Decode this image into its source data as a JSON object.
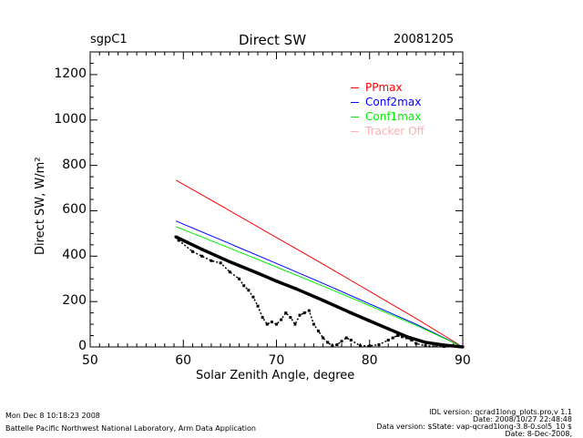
{
  "header": {
    "site": "sgpC1",
    "title": "Direct SW",
    "date": "20081205"
  },
  "footer": {
    "timestamp": "Mon Dec  8 10:18:23 2008",
    "organization": "Battelle Pacific Northwest National Laboratory, Arm Data Application",
    "idl_version": "IDL version: qcrad1long_plots.pro,v 1.1",
    "idl_date": "Date: 2008/10/27 22:48:48",
    "data_version": "Data version: $State: vap-qcrad1long-3.8-0.sol5_10 $",
    "data_date": "Date: 8-Dec-2008,"
  },
  "chart_data": {
    "type": "line",
    "title": "Direct SW",
    "xlabel": "Solar Zenith Angle, degree",
    "ylabel": "Direct SW, W/m²",
    "xlim": [
      50,
      90
    ],
    "ylim": [
      0,
      1300
    ],
    "xticks": [
      50,
      60,
      70,
      80,
      90
    ],
    "yticks": [
      0,
      200,
      400,
      600,
      800,
      1000,
      1200
    ],
    "grid": false,
    "legend_position": "top-right",
    "legend": [
      {
        "name": "PPmax",
        "color": "#ff0000"
      },
      {
        "name": "Conf2max",
        "color": "#0000ff"
      },
      {
        "name": "Conf1max",
        "color": "#00ee00"
      },
      {
        "name": "Tracker Off",
        "color": "#ffb0b0"
      }
    ],
    "series": [
      {
        "name": "PPmax",
        "color": "#ff0000",
        "x": [
          59.2,
          65,
          70,
          75,
          80,
          85,
          90
        ],
        "y": [
          735,
          600,
          482,
          365,
          245,
          125,
          0
        ]
      },
      {
        "name": "Conf2max",
        "color": "#0000ff",
        "x": [
          59.2,
          65,
          70,
          75,
          80,
          85,
          90
        ],
        "y": [
          555,
          455,
          368,
          280,
          190,
          100,
          0
        ]
      },
      {
        "name": "Conf1max",
        "color": "#00ee00",
        "x": [
          59.2,
          65,
          70,
          75,
          80,
          85,
          90
        ],
        "y": [
          530,
          435,
          352,
          268,
          182,
          95,
          0
        ]
      },
      {
        "name": "Measured (upper)",
        "color": "#000000",
        "x": [
          59.2,
          62,
          65,
          68,
          70,
          72,
          75,
          78,
          80,
          82,
          84,
          86,
          88,
          90
        ],
        "y": [
          485,
          430,
          375,
          325,
          290,
          258,
          205,
          150,
          115,
          80,
          45,
          20,
          8,
          0
        ]
      },
      {
        "name": "Measured (lower)",
        "color": "#000000",
        "x": [
          59.5,
          61,
          62,
          63,
          64,
          65,
          66,
          66.5,
          67,
          67.5,
          68,
          68.5,
          69,
          69.5,
          70,
          70.5,
          71,
          71.5,
          72,
          72.5,
          73,
          73.5,
          74,
          74.5,
          75,
          75.5,
          76,
          76.5,
          77,
          77.5,
          78,
          79,
          80,
          81,
          82,
          82.5,
          83,
          83.5,
          84,
          84.5,
          85,
          86,
          88
        ],
        "y": [
          470,
          420,
          400,
          380,
          370,
          330,
          300,
          270,
          250,
          220,
          180,
          130,
          100,
          110,
          100,
          120,
          150,
          130,
          100,
          140,
          150,
          160,
          100,
          70,
          40,
          20,
          5,
          10,
          25,
          40,
          30,
          5,
          5,
          10,
          30,
          40,
          50,
          45,
          40,
          30,
          15,
          5,
          2
        ]
      }
    ]
  }
}
